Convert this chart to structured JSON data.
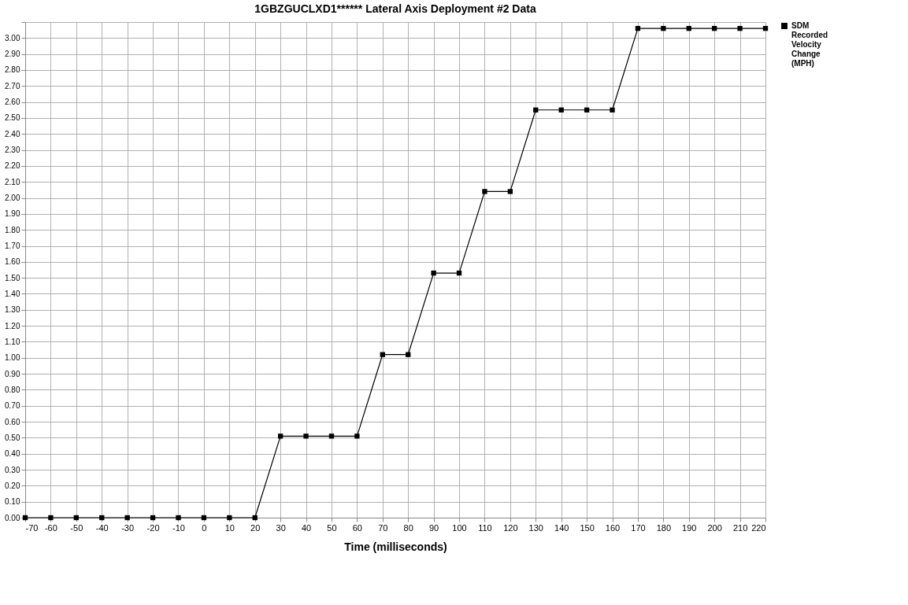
{
  "chart_data": {
    "type": "line",
    "title": "1GBZGUCLXD1******  Lateral Axis Deployment #2 Data",
    "xlabel": "Time (milliseconds)",
    "x": [
      -70,
      -60,
      -50,
      -40,
      -30,
      -20,
      -10,
      0,
      10,
      20,
      30,
      40,
      50,
      60,
      70,
      80,
      90,
      100,
      110,
      120,
      130,
      140,
      150,
      160,
      170,
      180,
      190,
      200,
      210,
      220
    ],
    "series": [
      {
        "name": "SDM Recorded Velocity Change (MPH)",
        "color": "#000000",
        "values": [
          0,
          0,
          0,
          0,
          0,
          0,
          0,
          0,
          0,
          0,
          0.51,
          0.51,
          0.51,
          0.51,
          1.02,
          1.02,
          1.53,
          1.53,
          2.04,
          2.04,
          2.55,
          2.55,
          2.55,
          2.55,
          3.06,
          3.06,
          3.06,
          3.06,
          3.06,
          3.06
        ]
      }
    ],
    "xlim": [
      -70,
      220
    ],
    "xticks": [
      -70,
      -60,
      -50,
      -40,
      -30,
      -20,
      -10,
      0,
      10,
      20,
      30,
      40,
      50,
      60,
      70,
      80,
      90,
      100,
      110,
      120,
      130,
      140,
      150,
      160,
      170,
      180,
      190,
      200,
      210,
      220
    ],
    "ylim": [
      0,
      3.1
    ],
    "yticks": [
      {
        "value": 0,
        "label": "0.00"
      },
      {
        "value": 0.1,
        "label": "0.10"
      },
      {
        "value": 0.2,
        "label": "0.20"
      },
      {
        "value": 0.3,
        "label": "0.30"
      },
      {
        "value": 0.4,
        "label": "0.40"
      },
      {
        "value": 0.5,
        "label": "0.50"
      },
      {
        "value": 0.6,
        "label": "0.60"
      },
      {
        "value": 0.7,
        "label": "0.70"
      },
      {
        "value": 0.8,
        "label": "0.80"
      },
      {
        "value": 0.9,
        "label": "0.90"
      },
      {
        "value": 1,
        "label": "1.00"
      },
      {
        "value": 1.1,
        "label": "1.10"
      },
      {
        "value": 1.2,
        "label": "1.20"
      },
      {
        "value": 1.3,
        "label": "1.30"
      },
      {
        "value": 1.4,
        "label": "1.40"
      },
      {
        "value": 1.5,
        "label": "1.50"
      },
      {
        "value": 1.6,
        "label": "1.60"
      },
      {
        "value": 1.7,
        "label": "1.70"
      },
      {
        "value": 1.8,
        "label": "1.80"
      },
      {
        "value": 1.9,
        "label": "1.90"
      },
      {
        "value": 2,
        "label": "2.00"
      },
      {
        "value": 2.1,
        "label": "2.10"
      },
      {
        "value": 2.2,
        "label": "2.20"
      },
      {
        "value": 2.3,
        "label": "2.30"
      },
      {
        "value": 2.4,
        "label": "2.40"
      },
      {
        "value": 2.5,
        "label": "2.50"
      },
      {
        "value": 2.6,
        "label": "2.60"
      },
      {
        "value": 2.7,
        "label": "2.70"
      },
      {
        "value": 2.8,
        "label": "2.80"
      },
      {
        "value": 2.9,
        "label": "2.90"
      },
      {
        "value": 3,
        "label": "3.00"
      },
      {
        "value": 3.1,
        "label": null
      }
    ],
    "grid": true,
    "legend": "top right",
    "marker": "square",
    "line_style": "solid"
  }
}
